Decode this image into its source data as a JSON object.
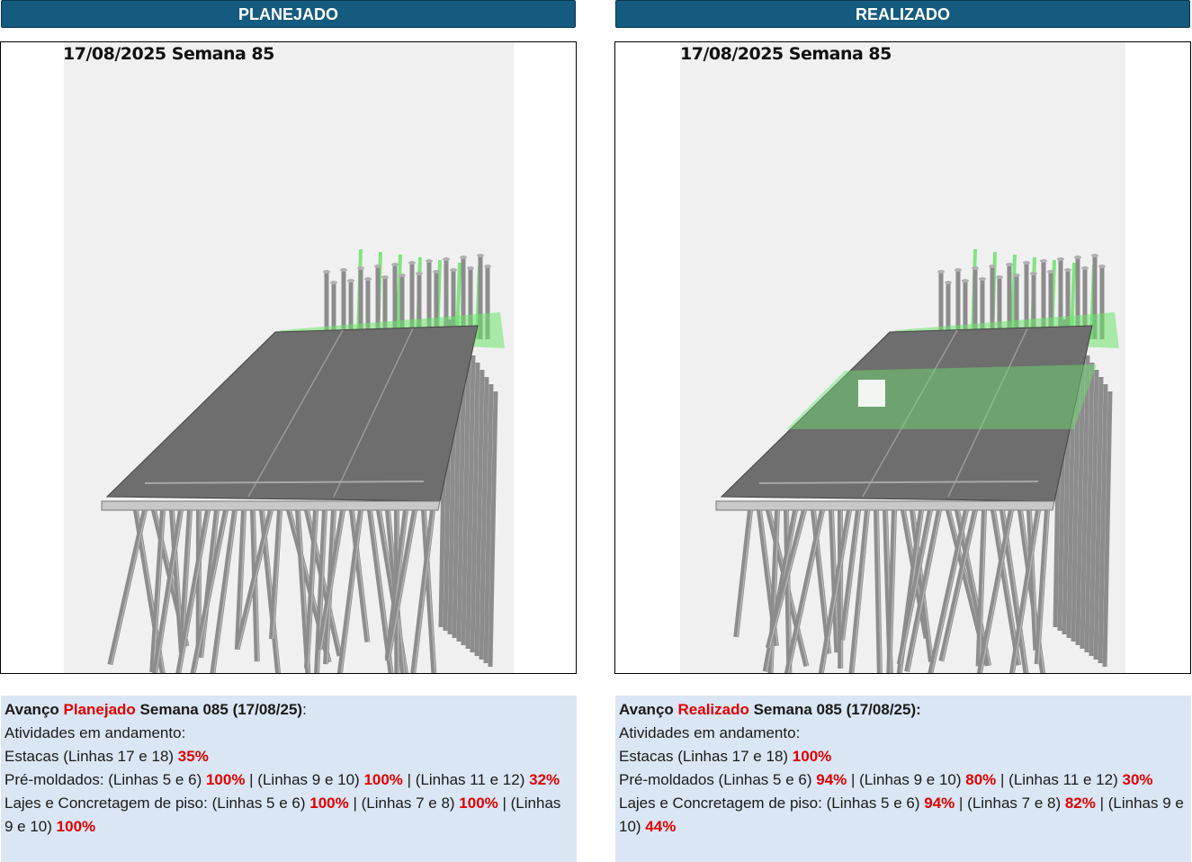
{
  "left": {
    "header": "PLANEJADO",
    "date_label": "17/08/2025 Semana 85",
    "summary": {
      "title_pre": "Avanço ",
      "title_highlight": "Planejado",
      "title_post": " Semana 085 (17/08/25)",
      "title_colon": ":",
      "activities_label": "Atividades em andamento:",
      "estacas": {
        "label": "Estacas (Linhas 17 e 18) ",
        "value": "35%"
      },
      "premoldados": {
        "label": "Pré-moldados: (Linhas 5 e 6) ",
        "v1": "100%",
        "sep1": " | (Linhas 9 e 10) ",
        "v2": "100%",
        "sep2": " | (Linhas 11 e 12) ",
        "v3": "32%"
      },
      "lajes": {
        "label": "Lajes e Concretagem de piso: (Linhas 5 e 6) ",
        "v1": "100%",
        "sep1": " | (Linhas 7 e 8) ",
        "v2": "100%",
        "sep2": " | (Linhas 9 e 10) ",
        "v3": "100%"
      }
    }
  },
  "right": {
    "header": "REALIZADO",
    "date_label": "17/08/2025 Semana 85",
    "summary": {
      "title_pre": "Avanço ",
      "title_highlight": "Realizado",
      "title_post": " Semana 085 (17/08/25):",
      "activities_label": "Atividades em andamento:",
      "estacas": {
        "label": "Estacas (Linhas 17 e 18) ",
        "value": "100%"
      },
      "premoldados": {
        "label": "Pré-moldados (Linhas 5 e 6) ",
        "v1": "94%",
        "sep1": " | (Linhas 9 e 10) ",
        "v2": "80%",
        "sep2": " | (Linhas 11 e 12) ",
        "v3": "30%"
      },
      "lajes": {
        "label": "Lajes e Concretagem de piso: (Linhas 5 e 6) ",
        "v1": "94%",
        "sep1": " | (Linhas 7 e 8) ",
        "v2": "82%",
        "sep2": " | (Linhas 9 e 10) ",
        "v3": "44%"
      }
    }
  },
  "colors": {
    "header_bg": "#155a7f",
    "info_bg": "#dae6f3",
    "highlight": "#e00000",
    "planned_green": "#6ee36e",
    "structure_gray": "#8a8a8a"
  }
}
